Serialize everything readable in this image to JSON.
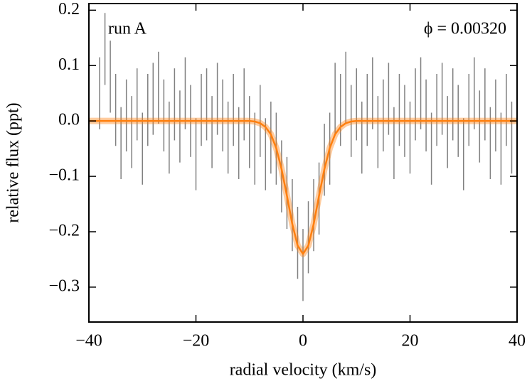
{
  "chart_data": {
    "type": "errorbar",
    "xlabel": "radial velocity (km/s)",
    "ylabel": "relative flux (ppt)",
    "annotations": [
      "run A",
      "ϕ = 0.00320"
    ],
    "xlim": [
      -40,
      40
    ],
    "ylim": [
      -0.363,
      0.212
    ],
    "xticks": [
      {
        "value": -40,
        "label": "−40"
      },
      {
        "value": -20,
        "label": "−20"
      },
      0,
      20,
      40
    ],
    "yticks": [
      {
        "value": 0.2,
        "label": "0.2"
      },
      {
        "value": 0.1,
        "label": "0.1"
      },
      {
        "value": 0,
        "label": "0.0"
      },
      {
        "value": -0.1,
        "label": "−0.1"
      },
      {
        "value": -0.2,
        "label": "−0.2"
      },
      {
        "value": -0.3,
        "label": "−0.3"
      }
    ],
    "series": [
      {
        "kind": "errorbar",
        "color": "#808080",
        "x": [
          -38,
          -37,
          -36,
          -35,
          -34,
          -33,
          -32,
          -31,
          -30,
          -29,
          -28,
          -27,
          -26,
          -25,
          -24,
          -23,
          -22,
          -21,
          -20,
          -19,
          -18,
          -17,
          -16,
          -15,
          -14,
          -13,
          -12,
          -11,
          -10,
          -9,
          -8,
          -7,
          -6,
          -5,
          -4,
          -3,
          -2,
          -1,
          0,
          1,
          2,
          3,
          4,
          5,
          6,
          7,
          8,
          9,
          10,
          11,
          12,
          13,
          14,
          15,
          16,
          17,
          18,
          19,
          20,
          21,
          22,
          23,
          24,
          25,
          26,
          27,
          28,
          29,
          30,
          31,
          32,
          33,
          34,
          35,
          36,
          37,
          38,
          39
        ],
        "values": [
          0.05,
          0.13,
          0.08,
          0.02,
          -0.04,
          0.01,
          -0.02,
          0.03,
          -0.05,
          0.02,
          0.04,
          0.06,
          0.01,
          -0.03,
          0.03,
          -0.01,
          0.05,
          0.0,
          -0.06,
          0.02,
          0.03,
          -0.02,
          0.04,
          0.01,
          -0.03,
          0.02,
          -0.04,
          0.03,
          -0.02,
          -0.05,
          0.0,
          -0.06,
          -0.03,
          -0.05,
          -0.1,
          -0.13,
          -0.17,
          -0.22,
          -0.26,
          -0.21,
          -0.17,
          -0.14,
          -0.07,
          -0.05,
          0.04,
          0.02,
          0.06,
          0.0,
          0.03,
          -0.03,
          0.02,
          0.05,
          -0.02,
          0.01,
          0.04,
          -0.04,
          0.02,
          0.0,
          -0.03,
          0.03,
          0.05,
          0.01,
          -0.05,
          0.02,
          0.04,
          -0.02,
          0.03,
          0.0,
          -0.06,
          0.02,
          0.05,
          -0.01,
          0.03,
          -0.04,
          0.01,
          -0.05,
          0.02,
          -0.03
        ],
        "yerr": 0.065
      },
      {
        "kind": "line",
        "color": "#ff7f0e",
        "x": [
          -40,
          -10,
          -9,
          -8,
          -7,
          -6,
          -5,
          -4,
          -3,
          -2,
          -1,
          0,
          1,
          2,
          3,
          4,
          5,
          6,
          7,
          8,
          9,
          10,
          40
        ],
        "values": [
          0,
          0,
          -0.001,
          -0.004,
          -0.011,
          -0.024,
          -0.049,
          -0.087,
          -0.135,
          -0.186,
          -0.225,
          -0.24,
          -0.225,
          -0.186,
          -0.135,
          -0.087,
          -0.049,
          -0.024,
          -0.011,
          -0.004,
          -0.001,
          0,
          0
        ]
      }
    ]
  }
}
